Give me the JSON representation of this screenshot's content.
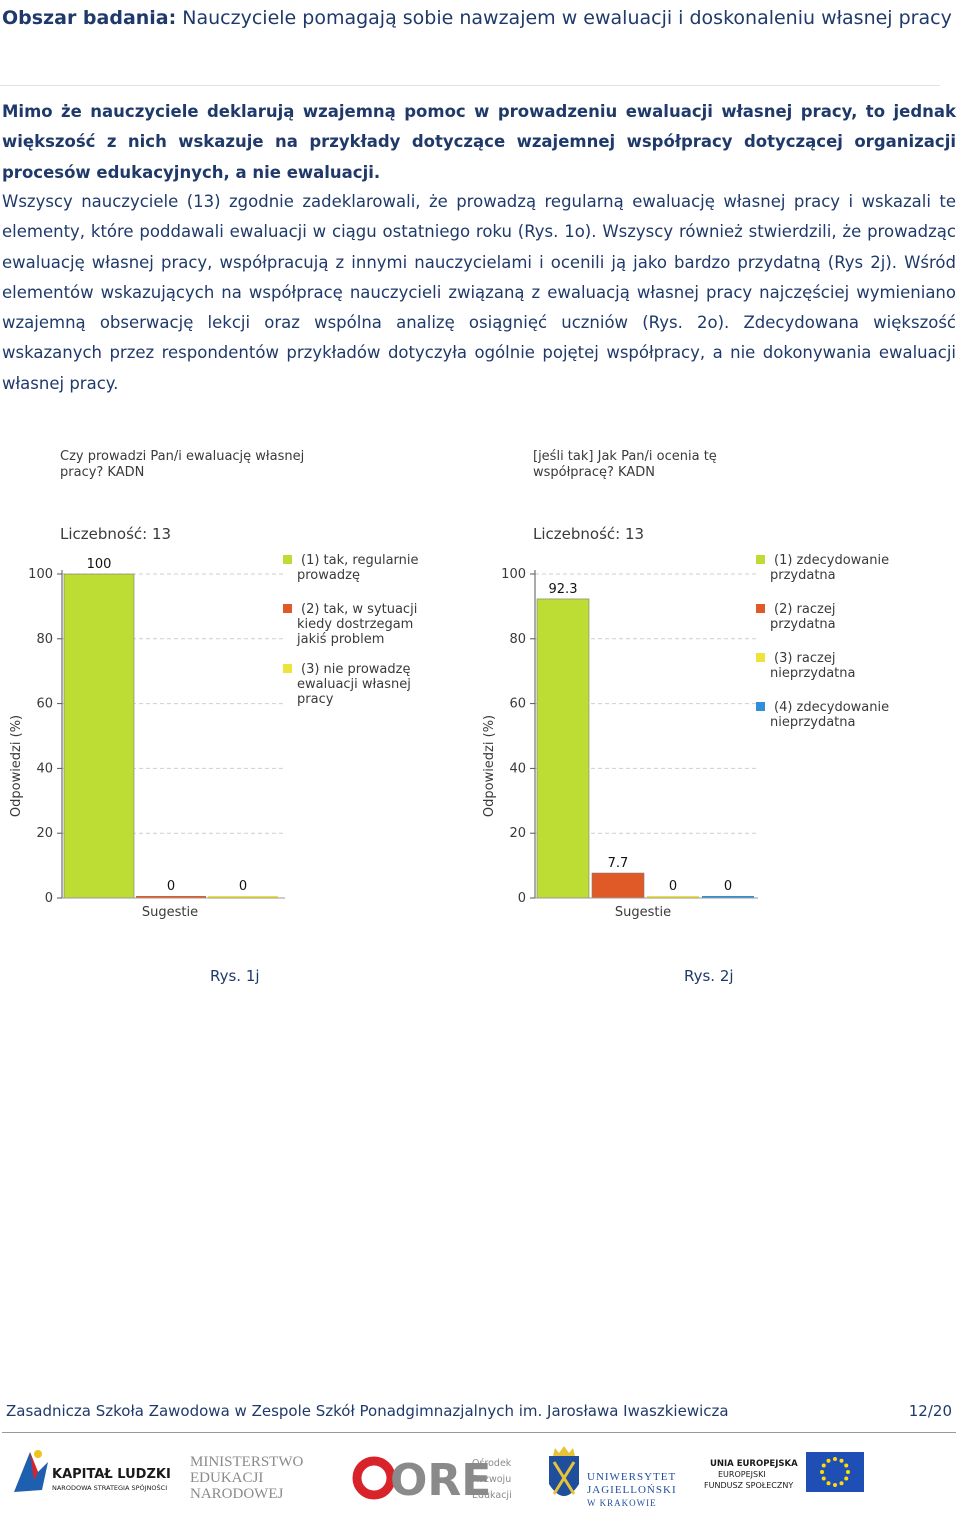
{
  "heading": {
    "label": "Obszar badania:",
    "text": "Nauczyciele pomagają sobie nawzajem w ewaluacji i doskonaleniu własnej pracy"
  },
  "lead_paragraph": "Mimo że nauczyciele deklarują wzajemną pomoc w prowadzeniu ewaluacji własnej pracy, to jednak większość z nich wskazuje na przykłady dotyczące wzajemnej współpracy dotyczącej organizacji procesów edukacyjnych, a nie ewaluacji.",
  "body_paragraph": "Wszyscy nauczyciele (13) zgodnie zadeklarowali, że prowadzą regularną ewaluację własnej pracy i wskazali te elementy, które poddawali ewaluacji w ciągu ostatniego roku (Rys. 1o). Wszyscy również stwierdzili, że prowadząc ewaluację własnej pracy, współpracują z innymi nauczycielami i ocenili ją jako bardzo przydatną (Rys 2j). Wśród elementów wskazujących na współpracę nauczycieli związaną z ewaluacją własnej pracy najczęściej wymieniano wzajemną obserwację lekcji oraz wspólna analizę osiągnięć uczniów (Rys. 2o). Zdecydowana większość wskazanych przez respondentów przykładów dotyczyła ogólnie pojętej współpracy, a nie dokonywania ewaluacji własnej pracy.",
  "chart_data": [
    {
      "type": "bar",
      "title": "Czy prowadzi Pan/i ewaluację własnej pracy? KADN",
      "title_lines": [
        "Czy prowadzi Pan/i ewaluację własnej",
        "pracy? KADN"
      ],
      "count_label": "Liczebność: 13",
      "ylabel": "Odpowiedzi (%)",
      "xlabel": "Sugestie",
      "ylim": [
        0,
        100
      ],
      "yticks": [
        0,
        20,
        40,
        60,
        80,
        100
      ],
      "grid": true,
      "legend_position": "right",
      "series": [
        {
          "name": "(1) tak, regularnie prowadzę",
          "legend_lines": [
            "(1) tak, regularnie",
            "prowadzę"
          ],
          "value": 100,
          "label": "100",
          "color": "#bddc34"
        },
        {
          "name": "(2) tak, w sytuacji kiedy dostrzegam jakiś problem",
          "legend_lines": [
            "(2) tak, w sytuacji",
            "kiedy dostrzegam",
            "jakiś problem"
          ],
          "value": 0,
          "label": "0",
          "color": "#e05a28"
        },
        {
          "name": "(3) nie prowadzę ewaluacji własnej pracy",
          "legend_lines": [
            "(3) nie prowadzę",
            "ewaluacji własnej",
            "pracy"
          ],
          "value": 0,
          "label": "0",
          "color": "#ede33a"
        }
      ],
      "caption": "Rys. 1j"
    },
    {
      "type": "bar",
      "title": "[jeśli tak] Jak Pan/i ocenia tę współpracę? KADN",
      "title_lines": [
        "[jeśli tak] Jak  Pan/i ocenia tę",
        "współpracę? KADN"
      ],
      "count_label": "Liczebność: 13",
      "ylabel": "Odpowiedzi (%)",
      "xlabel": "Sugestie",
      "ylim": [
        0,
        100
      ],
      "yticks": [
        0,
        20,
        40,
        60,
        80,
        100
      ],
      "grid": true,
      "legend_position": "right",
      "series": [
        {
          "name": "(1) zdecydowanie przydatna",
          "legend_lines": [
            "(1) zdecydowanie",
            "przydatna"
          ],
          "value": 92.3,
          "label": "92.3",
          "color": "#bddc34"
        },
        {
          "name": "(2) raczej przydatna",
          "legend_lines": [
            "(2) raczej",
            "przydatna"
          ],
          "value": 7.7,
          "label": "7.7",
          "color": "#e05a28"
        },
        {
          "name": "(3) raczej nieprzydatna",
          "legend_lines": [
            "(3) raczej",
            "nieprzydatna"
          ],
          "value": 0,
          "label": "0",
          "color": "#ede33a"
        },
        {
          "name": "(4) zdecydowanie nieprzydatna",
          "legend_lines": [
            "(4) zdecydowanie",
            "nieprzydatna"
          ],
          "value": 0,
          "label": "0",
          "color": "#2f8fd8"
        }
      ],
      "caption": "Rys. 2j"
    }
  ],
  "footer": {
    "school": "Zasadnicza Szkoła Zawodowa w Zespole Szkół Ponadgimnazjalnych im. Jarosława Iwaszkiewicza",
    "page": "12/20"
  },
  "logos": {
    "kapital": {
      "line1": "KAPITAŁ LUDZKI",
      "line2": "NARODOWA STRATEGIA SPÓJNOŚCI"
    },
    "men": [
      "MINISTERSTWO",
      "EDUKACJI",
      "NARODOWEJ"
    ],
    "ore": {
      "mark": "ORE",
      "lines": [
        "Ośrodek",
        "Rozwoju",
        "Edukacji"
      ]
    },
    "uj": [
      "UNIWERSYTET",
      "JAGIELLOŃSKI",
      "W KRAKOWIE"
    ],
    "eu": [
      "UNIA EUROPEJSKA",
      "EUROPEJSKI",
      "FUNDUSZ SPOŁECZNY"
    ]
  }
}
